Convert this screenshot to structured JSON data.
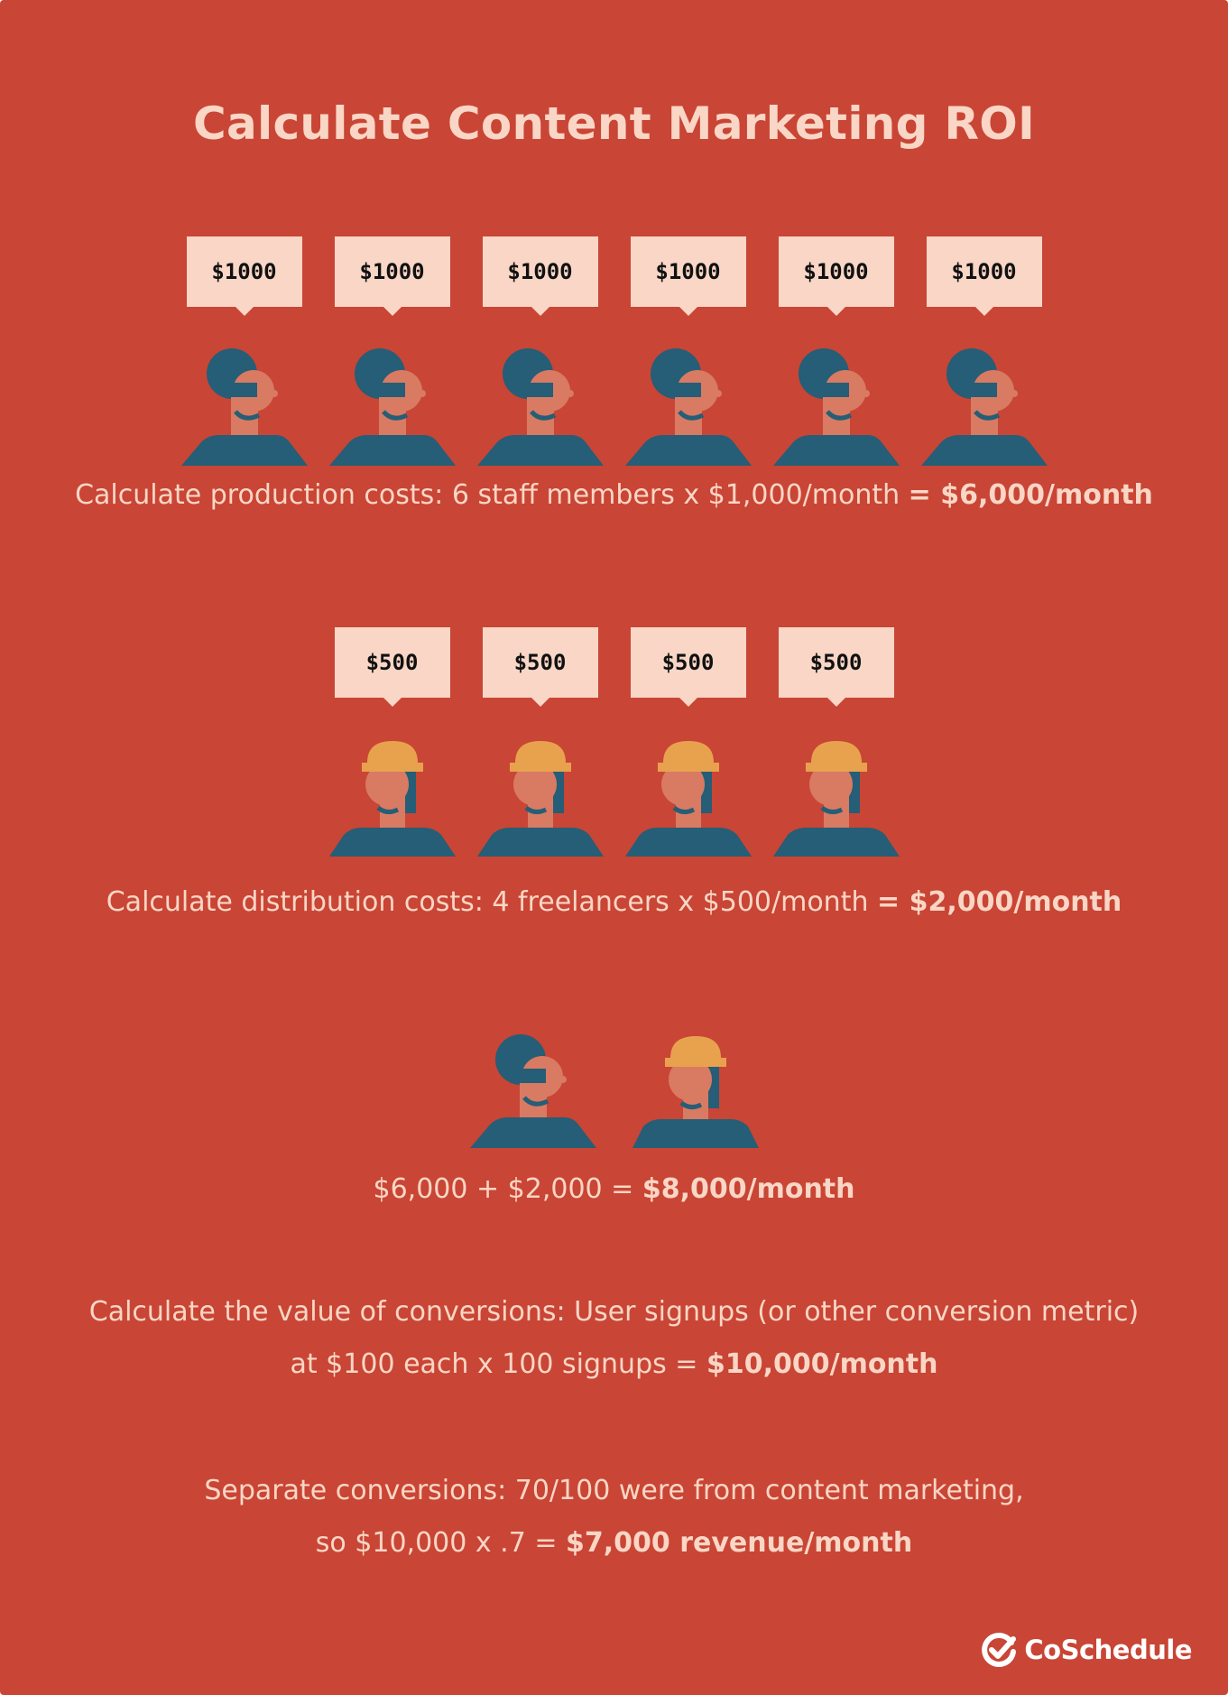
{
  "title": "Calculate Content Marketing ROI",
  "staff": {
    "amounts": [
      "$1000",
      "$1000",
      "$1000",
      "$1000",
      "$1000",
      "$1000"
    ],
    "line_text": "Calculate production costs: 6 staff members x $1,000/month ",
    "line_bold": "= $6,000/month"
  },
  "freelancers": {
    "amounts": [
      "$500",
      "$500",
      "$500",
      "$500"
    ],
    "line_text": "Calculate distribution costs: 4 freelancers x $500/month ",
    "line_bold": "= $2,000/month"
  },
  "total": {
    "line_text": "$6,000 + $2,000 = ",
    "line_bold": "$8,000/month"
  },
  "conversions": {
    "line1": "Calculate the value of conversions: User signups (or other conversion metric)",
    "line2_text": "at $100 each x 100 signups = ",
    "line2_bold": "$10,000/month"
  },
  "separate": {
    "line1": "Separate conversions: 70/100 were from content marketing,",
    "line2_text": "so $10,000 x .7 = ",
    "line2_bold": "$7,000 revenue/month"
  },
  "brand": {
    "name": "CoSchedule",
    "icon": "checkmark-logo-icon"
  },
  "colors": {
    "background": "#c94535",
    "cream": "#f9d6c5",
    "navy": "#255e76",
    "skin": "#d97a63",
    "helmet": "#e8a24e"
  }
}
